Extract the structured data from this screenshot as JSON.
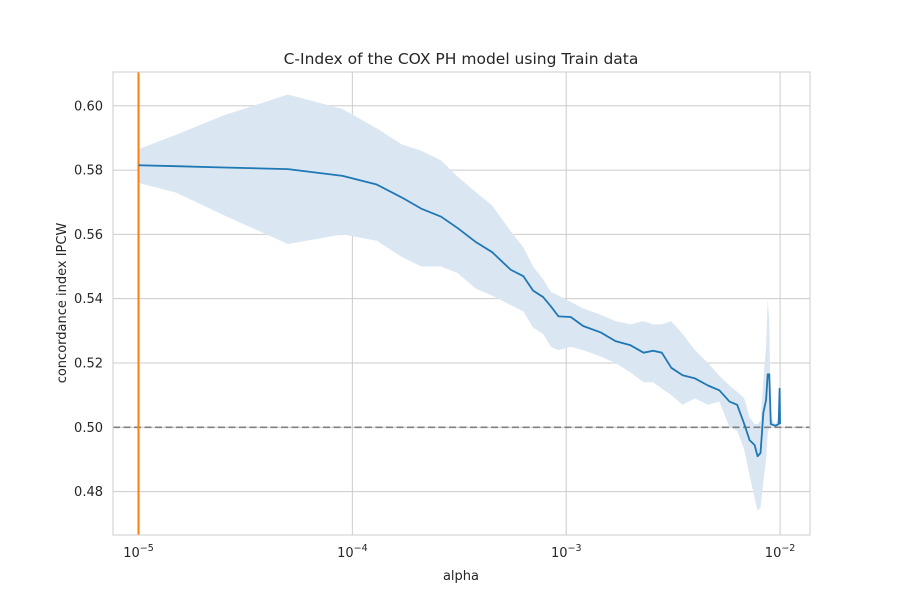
{
  "chart_data": {
    "type": "line",
    "title": "C-Index of the COX PH model using Train data",
    "xlabel": "alpha",
    "ylabel": "concordance index IPCW",
    "xscale": "log",
    "xlim": [
      7.6e-06,
      0.0138
    ],
    "ylim": [
      0.4665,
      0.6105
    ],
    "grid": true,
    "x_ticks": [
      {
        "value": 1e-05,
        "base": "10",
        "exp": "−5"
      },
      {
        "value": 0.0001,
        "base": "10",
        "exp": "−4"
      },
      {
        "value": 0.001,
        "base": "10",
        "exp": "−3"
      },
      {
        "value": 0.01,
        "base": "10",
        "exp": "−2"
      }
    ],
    "y_ticks": [
      {
        "value": 0.48,
        "label": "0.48"
      },
      {
        "value": 0.5,
        "label": "0.50"
      },
      {
        "value": 0.52,
        "label": "0.52"
      },
      {
        "value": 0.54,
        "label": "0.54"
      },
      {
        "value": 0.56,
        "label": "0.56"
      },
      {
        "value": 0.58,
        "label": "0.58"
      },
      {
        "value": 0.6,
        "label": "0.60"
      }
    ],
    "reference_lines": [
      {
        "orientation": "horizontal",
        "value": 0.5,
        "style": "dashed",
        "color": "#808080"
      },
      {
        "orientation": "vertical",
        "value": 1e-05,
        "style": "solid",
        "color": "#ff7f0e"
      }
    ],
    "series": [
      {
        "color": "#1f77b4",
        "band_color": "#dae7f3",
        "points": [
          {
            "x": 1e-05,
            "y": 0.5815,
            "lo": 0.576,
            "hi": 0.5865
          },
          {
            "x": 1.5e-05,
            "y": 0.5812,
            "lo": 0.573,
            "hi": 0.591
          },
          {
            "x": 2.5e-05,
            "y": 0.5808,
            "lo": 0.566,
            "hi": 0.597
          },
          {
            "x": 5e-05,
            "y": 0.5803,
            "lo": 0.557,
            "hi": 0.6035
          },
          {
            "x": 9e-05,
            "y": 0.5782,
            "lo": 0.56,
            "hi": 0.599
          },
          {
            "x": 0.00013,
            "y": 0.5755,
            "lo": 0.558,
            "hi": 0.593
          },
          {
            "x": 0.00017,
            "y": 0.5715,
            "lo": 0.553,
            "hi": 0.588
          },
          {
            "x": 0.00021,
            "y": 0.568,
            "lo": 0.55,
            "hi": 0.586
          },
          {
            "x": 0.00026,
            "y": 0.5655,
            "lo": 0.55,
            "hi": 0.583
          },
          {
            "x": 0.00031,
            "y": 0.562,
            "lo": 0.548,
            "hi": 0.578
          },
          {
            "x": 0.00038,
            "y": 0.5575,
            "lo": 0.543,
            "hi": 0.573
          },
          {
            "x": 0.00045,
            "y": 0.5545,
            "lo": 0.541,
            "hi": 0.569
          },
          {
            "x": 0.00055,
            "y": 0.549,
            "lo": 0.538,
            "hi": 0.561
          },
          {
            "x": 0.00063,
            "y": 0.547,
            "lo": 0.536,
            "hi": 0.556
          },
          {
            "x": 0.0007,
            "y": 0.5425,
            "lo": 0.531,
            "hi": 0.55
          },
          {
            "x": 0.00078,
            "y": 0.5405,
            "lo": 0.529,
            "hi": 0.546
          },
          {
            "x": 0.00085,
            "y": 0.5375,
            "lo": 0.525,
            "hi": 0.542
          },
          {
            "x": 0.00092,
            "y": 0.5345,
            "lo": 0.524,
            "hi": 0.541
          },
          {
            "x": 0.00105,
            "y": 0.5343,
            "lo": 0.525,
            "hi": 0.539
          },
          {
            "x": 0.0012,
            "y": 0.5315,
            "lo": 0.524,
            "hi": 0.537
          },
          {
            "x": 0.00145,
            "y": 0.5295,
            "lo": 0.522,
            "hi": 0.535
          },
          {
            "x": 0.0017,
            "y": 0.5268,
            "lo": 0.52,
            "hi": 0.533
          },
          {
            "x": 0.002,
            "y": 0.5255,
            "lo": 0.517,
            "hi": 0.532
          },
          {
            "x": 0.0023,
            "y": 0.5232,
            "lo": 0.514,
            "hi": 0.533
          },
          {
            "x": 0.00255,
            "y": 0.5238,
            "lo": 0.514,
            "hi": 0.532
          },
          {
            "x": 0.0028,
            "y": 0.5232,
            "lo": 0.512,
            "hi": 0.532
          },
          {
            "x": 0.0031,
            "y": 0.5185,
            "lo": 0.51,
            "hi": 0.533
          },
          {
            "x": 0.0035,
            "y": 0.5162,
            "lo": 0.507,
            "hi": 0.529
          },
          {
            "x": 0.004,
            "y": 0.5152,
            "lo": 0.509,
            "hi": 0.524
          },
          {
            "x": 0.0046,
            "y": 0.513,
            "lo": 0.507,
            "hi": 0.52
          },
          {
            "x": 0.0052,
            "y": 0.5115,
            "lo": 0.508,
            "hi": 0.516
          },
          {
            "x": 0.0058,
            "y": 0.508,
            "lo": 0.5,
            "hi": 0.513
          },
          {
            "x": 0.0063,
            "y": 0.507,
            "lo": 0.499,
            "hi": 0.511
          },
          {
            "x": 0.0068,
            "y": 0.501,
            "lo": 0.493,
            "hi": 0.509
          },
          {
            "x": 0.0072,
            "y": 0.496,
            "lo": 0.485,
            "hi": 0.503
          },
          {
            "x": 0.0076,
            "y": 0.4945,
            "lo": 0.478,
            "hi": 0.501
          },
          {
            "x": 0.00785,
            "y": 0.491,
            "lo": 0.474,
            "hi": 0.501
          },
          {
            "x": 0.0081,
            "y": 0.492,
            "lo": 0.475,
            "hi": 0.502
          },
          {
            "x": 0.00835,
            "y": 0.5045,
            "lo": 0.483,
            "hi": 0.515
          },
          {
            "x": 0.0086,
            "y": 0.5085,
            "lo": 0.49,
            "hi": 0.525
          },
          {
            "x": 0.00875,
            "y": 0.5165,
            "lo": 0.498,
            "hi": 0.54
          },
          {
            "x": 0.0089,
            "y": 0.5165,
            "lo": 0.5,
            "hi": 0.533
          },
          {
            "x": 0.00905,
            "y": 0.501,
            "lo": 0.5,
            "hi": 0.503
          },
          {
            "x": 0.0095,
            "y": 0.5005,
            "lo": 0.5,
            "hi": 0.501
          },
          {
            "x": 0.00985,
            "y": 0.501,
            "lo": 0.5,
            "hi": 0.503
          },
          {
            "x": 0.00995,
            "y": 0.512,
            "lo": 0.506,
            "hi": 0.513
          },
          {
            "x": 0.01,
            "y": 0.501,
            "lo": 0.5,
            "hi": 0.503
          }
        ]
      }
    ]
  }
}
